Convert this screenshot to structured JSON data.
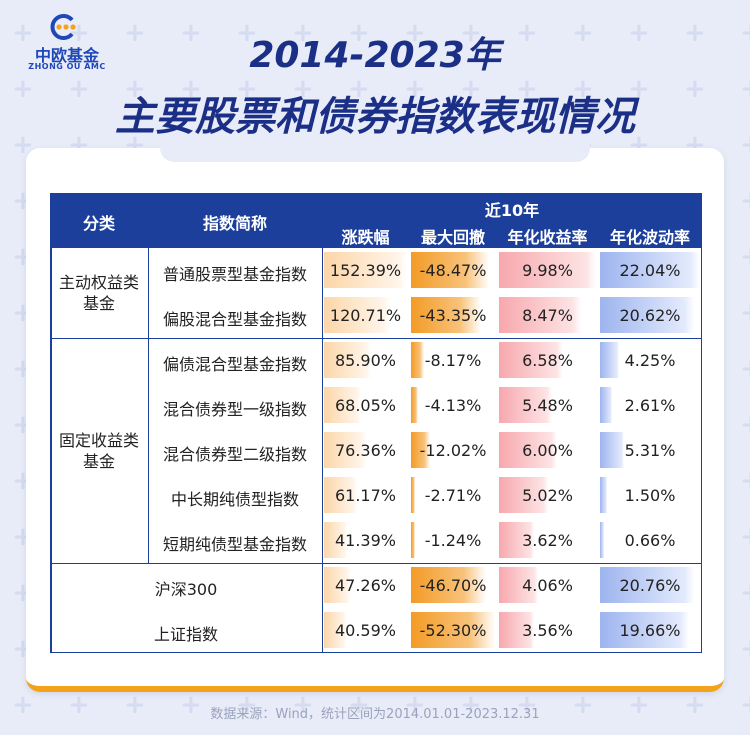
{
  "brand": {
    "name_cn": "中欧基金",
    "name_en": "ZHONG OU AMC"
  },
  "title_line1": "2014-2023年",
  "title_line2": "主要股票和债券指数表现情况",
  "header": {
    "category": "分类",
    "index_name": "指数简称",
    "period": "近10年",
    "cols": [
      "涨跌幅",
      "最大回撤",
      "年化收益率",
      "年化波动率"
    ]
  },
  "groups": [
    {
      "name": "主动权益类\n基金",
      "rows": [
        0,
        1
      ]
    },
    {
      "name": "固定收益类\n基金",
      "rows": [
        2,
        3,
        4,
        5,
        6
      ]
    }
  ],
  "chart_data": {
    "type": "table",
    "columns": [
      "分类",
      "指数简称",
      "涨跌幅",
      "最大回撤",
      "年化收益率",
      "年化波动率"
    ],
    "rows": [
      {
        "category": "主动权益类基金",
        "name": "普通股票型基金指数",
        "change": "152.39%",
        "max_drawdown": "-48.47%",
        "ann_return": "9.98%",
        "ann_vol": "22.04%",
        "v": [
          152.39,
          -48.47,
          9.98,
          22.04
        ]
      },
      {
        "category": "主动权益类基金",
        "name": "偏股混合型基金指数",
        "change": "120.71%",
        "max_drawdown": "-43.35%",
        "ann_return": "8.47%",
        "ann_vol": "20.62%",
        "v": [
          120.71,
          -43.35,
          8.47,
          20.62
        ]
      },
      {
        "category": "固定收益类基金",
        "name": "偏债混合型基金指数",
        "change": "85.90%",
        "max_drawdown": "-8.17%",
        "ann_return": "6.58%",
        "ann_vol": "4.25%",
        "v": [
          85.9,
          -8.17,
          6.58,
          4.25
        ]
      },
      {
        "category": "固定收益类基金",
        "name": "混合债券型一级指数",
        "change": "68.05%",
        "max_drawdown": "-4.13%",
        "ann_return": "5.48%",
        "ann_vol": "2.61%",
        "v": [
          68.05,
          -4.13,
          5.48,
          2.61
        ]
      },
      {
        "category": "固定收益类基金",
        "name": "混合债券型二级指数",
        "change": "76.36%",
        "max_drawdown": "-12.02%",
        "ann_return": "6.00%",
        "ann_vol": "5.31%",
        "v": [
          76.36,
          -12.02,
          6.0,
          5.31
        ]
      },
      {
        "category": "固定收益类基金",
        "name": "中长期纯债型指数",
        "change": "61.17%",
        "max_drawdown": "-2.71%",
        "ann_return": "5.02%",
        "ann_vol": "1.50%",
        "v": [
          61.17,
          -2.71,
          5.02,
          1.5
        ]
      },
      {
        "category": "固定收益类基金",
        "name": "短期纯债型基金指数",
        "change": "41.39%",
        "max_drawdown": "-1.24%",
        "ann_return": "3.62%",
        "ann_vol": "0.66%",
        "v": [
          41.39,
          -1.24,
          3.62,
          0.66
        ]
      },
      {
        "category": "",
        "name": "沪深300",
        "change": "47.26%",
        "max_drawdown": "-46.70%",
        "ann_return": "4.06%",
        "ann_vol": "20.76%",
        "v": [
          47.26,
          -46.7,
          4.06,
          20.76
        ]
      },
      {
        "category": "",
        "name": "上证指数",
        "change": "40.59%",
        "max_drawdown": "-52.30%",
        "ann_return": "3.56%",
        "ann_vol": "19.66%",
        "v": [
          40.59,
          -52.3,
          3.56,
          19.66
        ]
      }
    ]
  },
  "colors": {
    "header": "#1c3f9b",
    "accent": "#f3a21c",
    "title": "#1b2f86"
  },
  "footer": "数据来源：Wind，统计区间为2014.01.01-2023.12.31"
}
